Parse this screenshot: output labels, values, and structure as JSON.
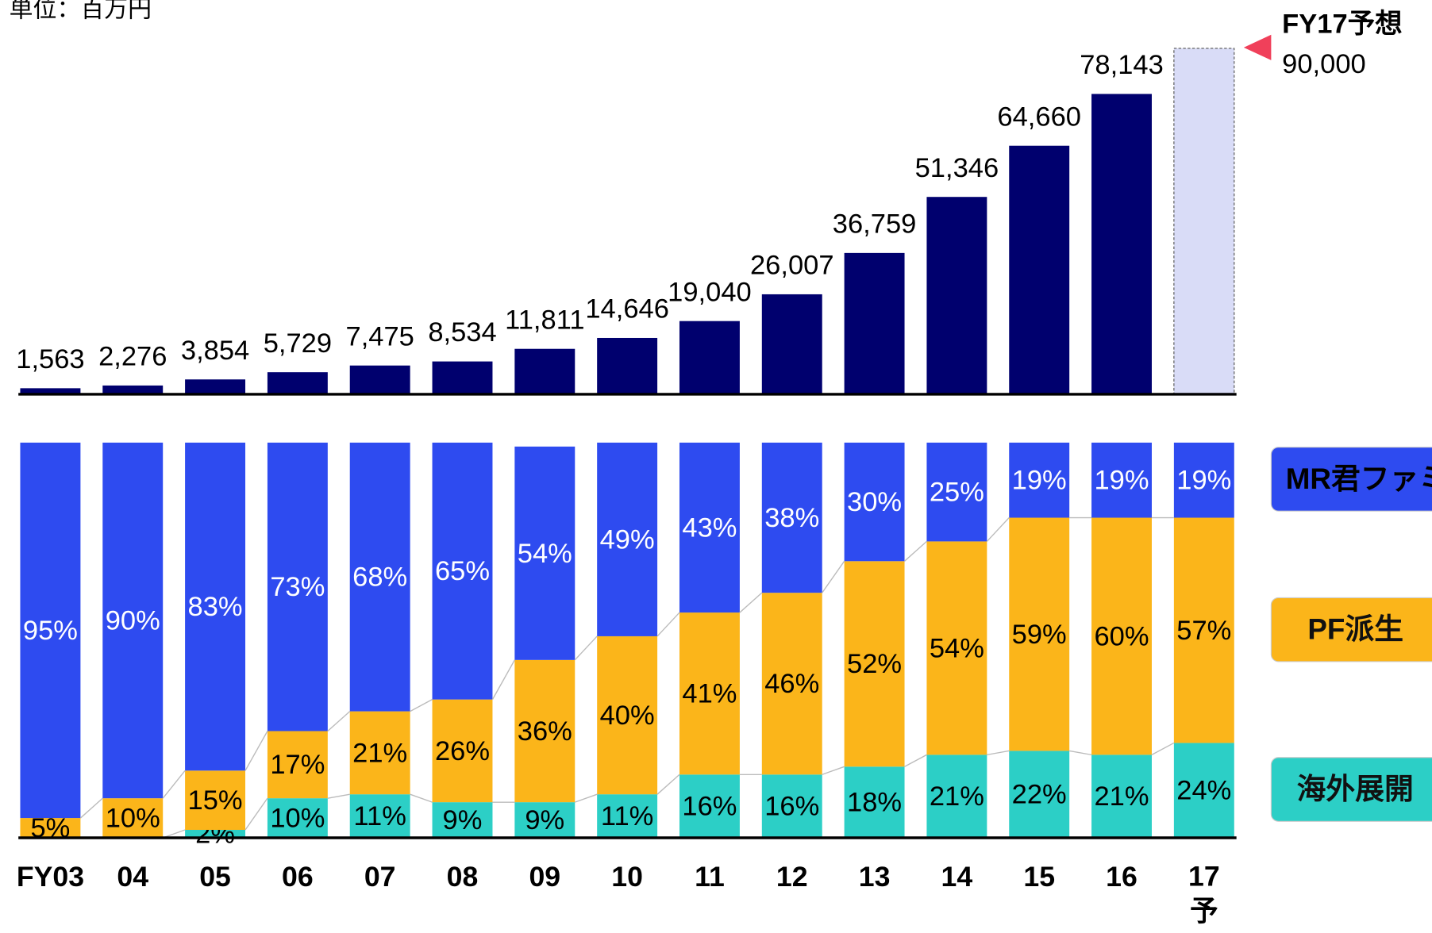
{
  "chart_data": [
    {
      "type": "bar",
      "unit": "単位：百万円",
      "values": [
        1563,
        2276,
        3854,
        5729,
        7475,
        8534,
        11811,
        14646,
        19040,
        26007,
        36759,
        51346,
        64660,
        78143,
        90000
      ],
      "value_labels": [
        "1,563",
        "2,276",
        "3,854",
        "5,729",
        "7,475",
        "8,534",
        "11,811",
        "14,646",
        "19,040",
        "26,007",
        "36,759",
        "51,346",
        "64,660",
        "78,143",
        "90,000"
      ],
      "color": "#00006e",
      "forecast_color": "#d9dcf7",
      "forecast_label": "FY17予想",
      "ylim": [
        0,
        90000
      ]
    },
    {
      "type": "stacked_bar",
      "categories": [
        "FY03",
        "04",
        "05",
        "06",
        "07",
        "08",
        "09",
        "10",
        "11",
        "12",
        "13",
        "14",
        "15",
        "16",
        "17予"
      ],
      "series": [
        {
          "name": "MR君ファミリ",
          "color": "#2e4bf0",
          "values": [
            95,
            90,
            83,
            73,
            68,
            65,
            54,
            49,
            43,
            38,
            30,
            25,
            19,
            19,
            19
          ],
          "value_labels": [
            "95%",
            "90%",
            "83%",
            "73%",
            "68%",
            "65%",
            "54%",
            "49%",
            "43%",
            "38%",
            "30%",
            "25%",
            "19%",
            "19%",
            "19%"
          ]
        },
        {
          "name": "PF派生",
          "color": "#fbb51a",
          "values": [
            5,
            10,
            15,
            17,
            21,
            26,
            36,
            40,
            41,
            46,
            52,
            54,
            59,
            60,
            57
          ],
          "value_labels": [
            "5%",
            "10%",
            "15%",
            "17%",
            "21%",
            "26%",
            "36%",
            "40%",
            "41%",
            "46%",
            "52%",
            "54%",
            "59%",
            "60%",
            "57%"
          ]
        },
        {
          "name": "海外展開",
          "color": "#2ccfc6",
          "values": [
            null,
            null,
            2,
            10,
            11,
            9,
            9,
            11,
            16,
            16,
            18,
            21,
            22,
            21,
            24
          ],
          "value_labels": [
            null,
            null,
            "2%",
            "10%",
            "11%",
            "9%",
            "9%",
            "11%",
            "16%",
            "16%",
            "18%",
            "21%",
            "22%",
            "21%",
            "24%"
          ]
        }
      ],
      "ylim": [
        0,
        100
      ]
    }
  ]
}
